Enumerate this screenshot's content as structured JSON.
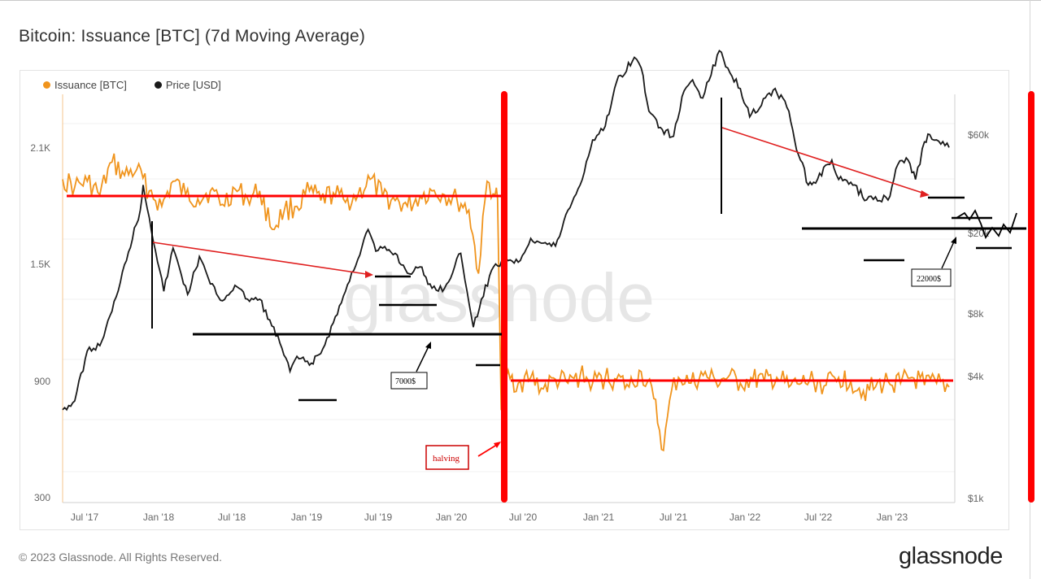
{
  "title": "Bitcoin: Issuance [BTC] (7d Moving Average)",
  "legend": {
    "issuance": "Issuance [BTC]",
    "price": "Price [USD]"
  },
  "colors": {
    "issuance": "#f0941d",
    "price": "#1a1a1a",
    "annotation_red": "#ff0000",
    "annotation_black": "#000000"
  },
  "annotations": {
    "halving": "halving",
    "support_2019": "7000$",
    "support_2022": "22000$"
  },
  "watermark": "glassnode",
  "footer": "© 2023 Glassnode. All Rights Reserved.",
  "brand": "glassnode",
  "chart_data": {
    "type": "line",
    "x_ticks": [
      "Jul '17",
      "Jan '18",
      "Jul '18",
      "Jan '19",
      "Jul '19",
      "Jan '20",
      "Jul '20",
      "Jan '21",
      "Jul '21",
      "Jan '22",
      "Jul '22",
      "Jan '23"
    ],
    "y_left_ticks": [
      "2.1K",
      "1.5K",
      "900",
      "300"
    ],
    "y_right_ticks": [
      "$60k",
      "$20k",
      "$8k",
      "$4k",
      "$1k"
    ],
    "y_left_range": [
      300,
      2250
    ],
    "y_right_scale": "log",
    "y_right_range": [
      1000,
      100000
    ],
    "series": [
      {
        "name": "Issuance [BTC]",
        "axis": "left",
        "points": [
          [
            "2017-06-01",
            1960
          ],
          [
            "2017-07-01",
            1920
          ],
          [
            "2017-08-01",
            1950
          ],
          [
            "2017-09-01",
            1880
          ],
          [
            "2017-10-01",
            2050
          ],
          [
            "2017-11-01",
            1980
          ],
          [
            "2017-12-01",
            2010
          ],
          [
            "2018-01-01",
            1900
          ],
          [
            "2018-02-01",
            1820
          ],
          [
            "2018-03-01",
            1950
          ],
          [
            "2018-04-01",
            1880
          ],
          [
            "2018-05-01",
            1860
          ],
          [
            "2018-06-01",
            1900
          ],
          [
            "2018-07-01",
            1830
          ],
          [
            "2018-08-01",
            1910
          ],
          [
            "2018-09-01",
            1860
          ],
          [
            "2018-10-01",
            1900
          ],
          [
            "2018-11-01",
            1700
          ],
          [
            "2018-12-01",
            1800
          ],
          [
            "2019-01-01",
            1820
          ],
          [
            "2019-02-01",
            1900
          ],
          [
            "2019-03-01",
            1850
          ],
          [
            "2019-04-01",
            1890
          ],
          [
            "2019-05-01",
            1840
          ],
          [
            "2019-06-01",
            1880
          ],
          [
            "2019-07-01",
            1960
          ],
          [
            "2019-08-01",
            1870
          ],
          [
            "2019-09-01",
            1850
          ],
          [
            "2019-10-01",
            1820
          ],
          [
            "2019-11-01",
            1870
          ],
          [
            "2019-12-01",
            1900
          ],
          [
            "2020-01-01",
            1880
          ],
          [
            "2020-02-01",
            1850
          ],
          [
            "2020-03-01",
            1800
          ],
          [
            "2020-03-25",
            1470
          ],
          [
            "2020-04-15",
            1950
          ],
          [
            "2020-05-05",
            1880
          ],
          [
            "2020-05-11",
            1860
          ],
          [
            "2020-05-20",
            760
          ],
          [
            "2020-06-01",
            930
          ],
          [
            "2020-07-01",
            900
          ],
          [
            "2020-08-01",
            930
          ],
          [
            "2020-09-01",
            870
          ],
          [
            "2020-10-01",
            920
          ],
          [
            "2020-11-01",
            900
          ],
          [
            "2020-12-01",
            940
          ],
          [
            "2021-01-01",
            900
          ],
          [
            "2021-02-01",
            930
          ],
          [
            "2021-03-01",
            920
          ],
          [
            "2021-04-01",
            880
          ],
          [
            "2021-05-01",
            960
          ],
          [
            "2021-06-01",
            820
          ],
          [
            "2021-06-25",
            550
          ],
          [
            "2021-07-15",
            860
          ],
          [
            "2021-08-01",
            930
          ],
          [
            "2021-09-01",
            900
          ],
          [
            "2021-10-01",
            940
          ],
          [
            "2021-11-01",
            910
          ],
          [
            "2021-12-01",
            930
          ],
          [
            "2022-01-01",
            900
          ],
          [
            "2022-02-01",
            920
          ],
          [
            "2022-03-01",
            910
          ],
          [
            "2022-04-01",
            930
          ],
          [
            "2022-05-01",
            880
          ],
          [
            "2022-06-01",
            900
          ],
          [
            "2022-07-01",
            910
          ],
          [
            "2022-08-01",
            890
          ],
          [
            "2022-09-01",
            930
          ],
          [
            "2022-10-01",
            910
          ],
          [
            "2022-11-01",
            860
          ],
          [
            "2022-12-01",
            880
          ],
          [
            "2023-01-01",
            910
          ],
          [
            "2023-02-01",
            900
          ],
          [
            "2023-03-01",
            930
          ],
          [
            "2023-04-01",
            890
          ],
          [
            "2023-05-01",
            900
          ],
          [
            "2023-06-01",
            880
          ]
        ]
      },
      {
        "name": "Price [USD]",
        "axis": "right",
        "points": [
          [
            "2017-06-01",
            2300
          ],
          [
            "2017-07-01",
            2500
          ],
          [
            "2017-08-01",
            4000
          ],
          [
            "2017-09-01",
            4200
          ],
          [
            "2017-10-01",
            5800
          ],
          [
            "2017-11-01",
            9000
          ],
          [
            "2017-12-10",
            15000
          ],
          [
            "2017-12-17",
            19000
          ],
          [
            "2018-01-01",
            14000
          ],
          [
            "2018-02-06",
            7000
          ],
          [
            "2018-03-01",
            10500
          ],
          [
            "2018-04-06",
            6800
          ],
          [
            "2018-05-05",
            9700
          ],
          [
            "2018-06-01",
            7500
          ],
          [
            "2018-07-01",
            6400
          ],
          [
            "2018-08-01",
            7400
          ],
          [
            "2018-09-01",
            6500
          ],
          [
            "2018-10-01",
            6500
          ],
          [
            "2018-11-20",
            4300
          ],
          [
            "2018-12-15",
            3300
          ],
          [
            "2019-01-01",
            3800
          ],
          [
            "2019-02-01",
            3500
          ],
          [
            "2019-03-01",
            3900
          ],
          [
            "2019-04-01",
            5200
          ],
          [
            "2019-05-01",
            7000
          ],
          [
            "2019-06-26",
            12500
          ],
          [
            "2019-07-15",
            10200
          ],
          [
            "2019-08-01",
            10500
          ],
          [
            "2019-09-01",
            10000
          ],
          [
            "2019-10-01",
            8300
          ],
          [
            "2019-11-01",
            8800
          ],
          [
            "2019-12-01",
            7200
          ],
          [
            "2020-01-01",
            7200
          ],
          [
            "2020-02-10",
            10000
          ],
          [
            "2020-03-12",
            5000
          ],
          [
            "2020-04-01",
            6500
          ],
          [
            "2020-05-01",
            8800
          ],
          [
            "2020-06-01",
            9500
          ],
          [
            "2020-07-01",
            9200
          ],
          [
            "2020-08-01",
            11500
          ],
          [
            "2020-09-01",
            11000
          ],
          [
            "2020-10-01",
            10700
          ],
          [
            "2020-11-01",
            15000
          ],
          [
            "2020-12-01",
            19000
          ],
          [
            "2021-01-01",
            29000
          ],
          [
            "2021-02-01",
            33000
          ],
          [
            "2021-03-01",
            50000
          ],
          [
            "2021-04-14",
            63000
          ],
          [
            "2021-05-01",
            57000
          ],
          [
            "2021-05-20",
            38000
          ],
          [
            "2021-06-22",
            32000
          ],
          [
            "2021-07-20",
            30000
          ],
          [
            "2021-08-15",
            46000
          ],
          [
            "2021-09-05",
            51000
          ],
          [
            "2021-09-30",
            43000
          ],
          [
            "2021-11-10",
            67000
          ],
          [
            "2021-12-01",
            57000
          ],
          [
            "2022-01-01",
            47000
          ],
          [
            "2022-01-24",
            36000
          ],
          [
            "2022-03-28",
            47000
          ],
          [
            "2022-05-01",
            38000
          ],
          [
            "2022-05-15",
            29000
          ],
          [
            "2022-06-18",
            19000
          ],
          [
            "2022-07-01",
            19500
          ],
          [
            "2022-08-15",
            24000
          ],
          [
            "2022-09-01",
            20000
          ],
          [
            "2022-10-01",
            19500
          ],
          [
            "2022-11-09",
            16500
          ],
          [
            "2022-12-01",
            17000
          ],
          [
            "2023-01-01",
            16500
          ],
          [
            "2023-01-25",
            23000
          ],
          [
            "2023-02-15",
            24500
          ],
          [
            "2023-03-10",
            20000
          ],
          [
            "2023-04-01",
            28500
          ],
          [
            "2023-04-14",
            30500
          ],
          [
            "2023-05-01",
            29000
          ],
          [
            "2023-06-01",
            27000
          ]
        ]
      }
    ],
    "grid": true,
    "legend_position": "top-left"
  }
}
